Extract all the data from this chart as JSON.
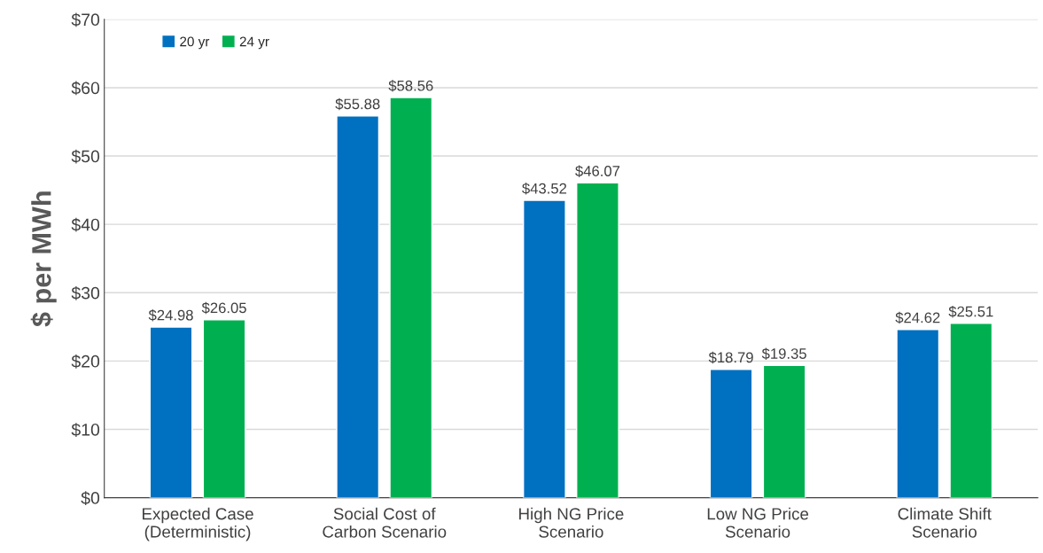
{
  "chart_data": {
    "type": "bar",
    "ylabel": "$ per MWh",
    "categories": [
      "Expected Case\n(Deterministic)",
      "Social Cost of\nCarbon Scenario",
      "High NG Price\nScenario",
      "Low NG Price\nScenario",
      "Climate Shift\nScenario"
    ],
    "series": [
      {
        "name": "20 yr",
        "color": "#0070c0",
        "values": [
          24.98,
          55.88,
          43.52,
          18.79,
          24.62
        ],
        "value_labels": [
          "$24.98",
          "$55.88",
          "$43.52",
          "$18.79",
          "$24.62"
        ]
      },
      {
        "name": "24 yr",
        "color": "#00b050",
        "values": [
          26.05,
          58.56,
          46.07,
          19.35,
          25.51
        ],
        "value_labels": [
          "$26.05",
          "$58.56",
          "$46.07",
          "$19.35",
          "$25.51"
        ]
      }
    ],
    "ylim": [
      0,
      70
    ],
    "yticks": [
      {
        "value": 0,
        "label": "$0"
      },
      {
        "value": 10,
        "label": "$10"
      },
      {
        "value": 20,
        "label": "$20"
      },
      {
        "value": 30,
        "label": "$30"
      },
      {
        "value": 40,
        "label": "$40"
      },
      {
        "value": 50,
        "label": "$50"
      },
      {
        "value": 60,
        "label": "$60"
      },
      {
        "value": 70,
        "label": "$70"
      }
    ],
    "grid": "y",
    "legend": "top left"
  }
}
